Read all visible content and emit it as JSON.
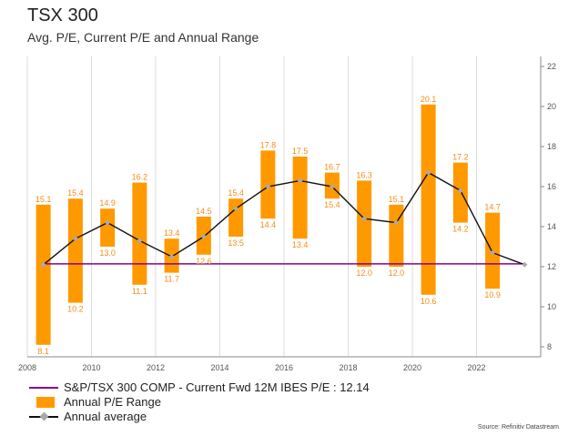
{
  "header": {
    "title": "TSX 300",
    "subtitle": "Avg. P/E, Current P/E and Annual Range"
  },
  "legend": {
    "current": "S&P/TSX 300 COMP - Current Fwd 12M IBES P/E : 12.14",
    "range": "Annual P/E Range",
    "average": "Annual average"
  },
  "source": "Source: Refinitiv Datastream",
  "chart_data": {
    "type": "bar",
    "title": "TSX 300",
    "subtitle": "Avg. P/E, Current P/E and Annual Range",
    "x_ticks": [
      2008,
      2010,
      2012,
      2014,
      2016,
      2018,
      2020,
      2022
    ],
    "y_ticks": [
      8,
      10,
      12,
      14,
      16,
      18,
      20,
      22
    ],
    "xlim": [
      2008,
      2024
    ],
    "ylim": [
      7.5,
      22.5
    ],
    "y_axis_position": "right",
    "grid": "vertical",
    "current_pe": 12.14,
    "colors": {
      "range": "#ff9900",
      "current": "#8b008b",
      "average": "#111111",
      "marker": "#aaaaaa",
      "label": "#f28c1e"
    },
    "ranges": [
      {
        "x": 2008.5,
        "high": 15.1,
        "low": 8.1,
        "high_label": "15.1",
        "low_label": "8.1"
      },
      {
        "x": 2009.5,
        "high": 15.4,
        "low": 10.2,
        "high_label": "15.4",
        "low_label": "10.2"
      },
      {
        "x": 2010.5,
        "high": 14.9,
        "low": 13.0,
        "high_label": "14.9",
        "low_label": "13.0"
      },
      {
        "x": 2011.5,
        "high": 16.2,
        "low": 11.1,
        "high_label": "16.2",
        "low_label": "11.1"
      },
      {
        "x": 2012.5,
        "high": 13.4,
        "low": 11.7,
        "high_label": "13.4",
        "low_label": "11.7"
      },
      {
        "x": 2013.5,
        "high": 14.5,
        "low": 12.6,
        "high_label": "14.5",
        "low_label": "12.6"
      },
      {
        "x": 2014.5,
        "high": 15.4,
        "low": 13.5,
        "high_label": "15.4",
        "low_label": "13.5"
      },
      {
        "x": 2015.5,
        "high": 17.8,
        "low": 14.4,
        "high_label": "17.8",
        "low_label": "14.4"
      },
      {
        "x": 2016.5,
        "high": 17.5,
        "low": 13.4,
        "high_label": "17.5",
        "low_label": "13.4"
      },
      {
        "x": 2017.5,
        "high": 16.7,
        "low": 15.4,
        "high_label": "16.7",
        "low_label": "15.4"
      },
      {
        "x": 2018.5,
        "high": 16.3,
        "low": 12.0,
        "high_label": "16.3",
        "low_label": "12.0"
      },
      {
        "x": 2019.5,
        "high": 15.1,
        "low": 12.0,
        "high_label": "15.1",
        "low_label": "12.0"
      },
      {
        "x": 2020.5,
        "high": 20.1,
        "low": 10.6,
        "high_label": "20.1",
        "low_label": "10.6"
      },
      {
        "x": 2021.5,
        "high": 17.2,
        "low": 14.2,
        "high_label": "17.2",
        "low_label": "14.2"
      },
      {
        "x": 2022.5,
        "high": 14.7,
        "low": 10.9,
        "high_label": "14.7",
        "low_label": "10.9"
      }
    ],
    "average": [
      {
        "x": 2008.5,
        "y": 12.1
      },
      {
        "x": 2009.5,
        "y": 13.4
      },
      {
        "x": 2010.5,
        "y": 14.2
      },
      {
        "x": 2011.5,
        "y": 13.3
      },
      {
        "x": 2012.5,
        "y": 12.5
      },
      {
        "x": 2013.5,
        "y": 13.5
      },
      {
        "x": 2014.5,
        "y": 14.9
      },
      {
        "x": 2015.5,
        "y": 16.0
      },
      {
        "x": 2016.5,
        "y": 16.3
      },
      {
        "x": 2017.5,
        "y": 16.0
      },
      {
        "x": 2018.5,
        "y": 14.4
      },
      {
        "x": 2019.5,
        "y": 14.2
      },
      {
        "x": 2020.5,
        "y": 16.7
      },
      {
        "x": 2021.5,
        "y": 15.8
      },
      {
        "x": 2022.5,
        "y": 12.7
      },
      {
        "x": 2023.5,
        "y": 12.1
      }
    ]
  }
}
